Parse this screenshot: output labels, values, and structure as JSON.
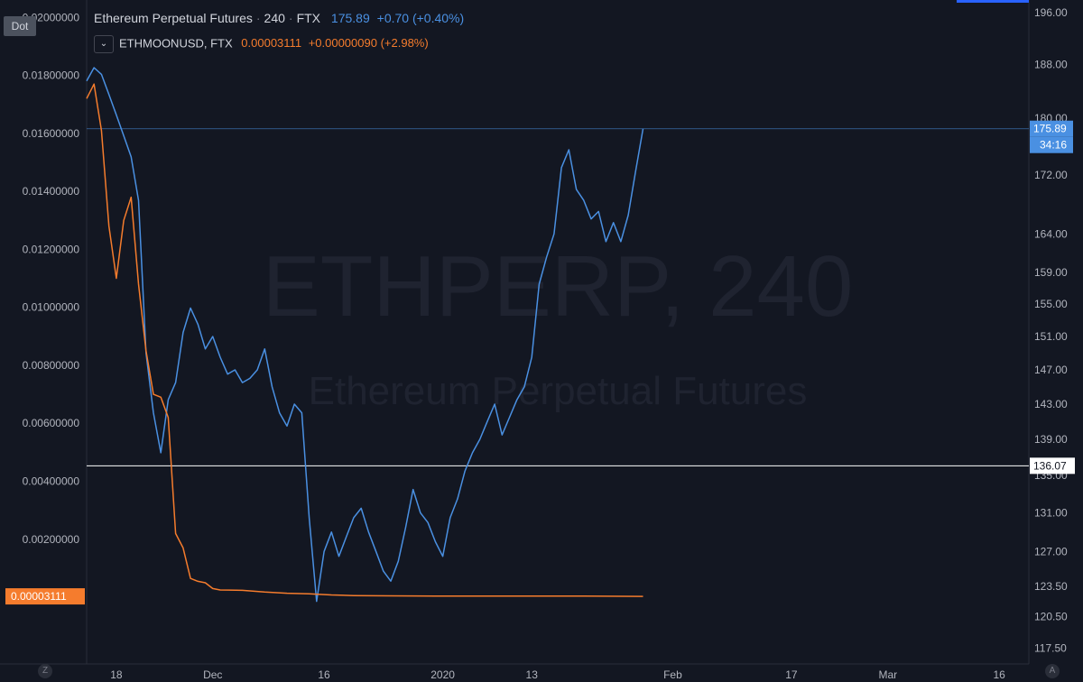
{
  "legend": {
    "main_title": "Ethereum Perpetual Futures",
    "interval": "240",
    "exchange": "FTX",
    "price": "175.89",
    "change": "+0.70 (+0.40%)",
    "overlay_symbol": "ETHMOONUSD, FTX",
    "overlay_price": "0.00003111",
    "overlay_change": "+0.00000090 (+2.98%)"
  },
  "toolbar": {
    "dot_label": "Dot",
    "zoom_icon": "Z",
    "auto_icon": "A"
  },
  "watermark": {
    "symbol": "ETHPERP, 240",
    "description": "Ethereum Perpetual Futures"
  },
  "colors": {
    "background": "#131722",
    "eth": "#4a90e2",
    "moon": "#f57c2d",
    "axis_text": "#b2b5be",
    "hline": "#ffffff",
    "price_line": "#4a90e2"
  },
  "chart_data": {
    "type": "line",
    "xlabel": "",
    "ylabel_left": "",
    "ylabel_right": "",
    "x_ticks": [
      "18",
      "Dec",
      "16",
      "2020",
      "13",
      "Feb",
      "17",
      "Mar",
      "16"
    ],
    "right_axis": {
      "scale": "log",
      "ticks": [
        "196.00",
        "188.00",
        "180.00",
        "172.00",
        "164.00",
        "159.00",
        "155.00",
        "151.00",
        "147.00",
        "143.00",
        "139.00",
        "135.00",
        "131.00",
        "127.00",
        "123.50",
        "120.50",
        "117.50"
      ],
      "ylim": [
        116,
        198
      ],
      "last_price_label": "175.89",
      "countdown_label": "34:16",
      "hline_label": "136.07"
    },
    "left_axis": {
      "ticks": [
        "0.02000000",
        "0.01800000",
        "0.01600000",
        "0.01400000",
        "0.01200000",
        "0.01000000",
        "0.00800000",
        "0.00600000",
        "0.00400000",
        "0.00200000"
      ],
      "ylim": [
        -0.0023,
        0.0206
      ],
      "last_value_label": "0.00003111"
    },
    "horizontal_line": 136.07,
    "series": [
      {
        "name": "Ethereum Perpetual Futures",
        "axis": "right",
        "x": [
          "Nov 14",
          "Nov 15",
          "Nov 16",
          "Nov 17",
          "Nov 18",
          "Nov 19",
          "Nov 20",
          "Nov 21",
          "Nov 22",
          "Nov 23",
          "Nov 24",
          "Nov 25",
          "Nov 26",
          "Nov 27",
          "Nov 28",
          "Nov 29",
          "Nov 30",
          "Dec 1",
          "Dec 2",
          "Dec 3",
          "Dec 4",
          "Dec 5",
          "Dec 6",
          "Dec 7",
          "Dec 8",
          "Dec 9",
          "Dec 10",
          "Dec 11",
          "Dec 12",
          "Dec 13",
          "Dec 14",
          "Dec 15",
          "Dec 16",
          "Dec 17",
          "Dec 18",
          "Dec 19",
          "Dec 20",
          "Dec 21",
          "Dec 22",
          "Dec 23",
          "Dec 24",
          "Dec 25",
          "Dec 26",
          "Dec 27",
          "Dec 28",
          "Dec 29",
          "Dec 30",
          "Dec 31",
          "Jan 1",
          "Jan 2",
          "Jan 3",
          "Jan 4",
          "Jan 5",
          "Jan 6",
          "Jan 7",
          "Jan 8",
          "Jan 9",
          "Jan 10",
          "Jan 11",
          "Jan 12",
          "Jan 13",
          "Jan 14",
          "Jan 15",
          "Jan 16",
          "Jan 17",
          "Jan 18",
          "Jan 19",
          "Jan 20",
          "Jan 21",
          "Jan 22",
          "Jan 23",
          "Jan 24",
          "Jan 25",
          "Jan 26",
          "Jan 27",
          "Jan 28"
        ],
        "values": [
          185.5,
          187.5,
          186.5,
          183.5,
          180.5,
          177.5,
          174.5,
          168.5,
          149.0,
          142.0,
          137.5,
          143.5,
          145.5,
          151.5,
          154.5,
          152.5,
          149.5,
          151.0,
          148.5,
          146.5,
          147.0,
          145.5,
          146.0,
          147.0,
          149.5,
          145.0,
          142.0,
          140.5,
          143.0,
          142.0,
          130.5,
          122.0,
          127.0,
          129.0,
          126.5,
          128.5,
          130.5,
          131.5,
          129.0,
          127.0,
          125.0,
          124.0,
          126.0,
          129.5,
          133.5,
          131.0,
          130.0,
          128.0,
          126.5,
          130.5,
          132.5,
          135.5,
          137.5,
          139.0,
          141.0,
          143.0,
          139.5,
          141.5,
          143.5,
          145.0,
          148.5,
          157.5,
          161.0,
          164.0,
          173.0,
          175.5,
          170.0,
          168.5,
          166.0,
          167.0,
          163.0,
          165.5,
          163.0,
          166.5,
          172.5,
          178.5
        ]
      },
      {
        "name": "ETHMOONUSD, FTX",
        "axis": "left",
        "x": [
          "Nov 14",
          "Nov 15",
          "Nov 16",
          "Nov 17",
          "Nov 18",
          "Nov 19",
          "Nov 20",
          "Nov 21",
          "Nov 22",
          "Nov 23",
          "Nov 24",
          "Nov 25",
          "Nov 26",
          "Nov 27",
          "Nov 28",
          "Nov 29",
          "Nov 30",
          "Dec 1",
          "Dec 2",
          "Dec 5",
          "Dec 8",
          "Dec 11",
          "Dec 14",
          "Dec 17",
          "Dec 20",
          "Dec 25",
          "Dec 31",
          "Jan 10",
          "Jan 20",
          "Jan 28"
        ],
        "values": [
          0.0172,
          0.0177,
          0.0161,
          0.0128,
          0.011,
          0.013,
          0.0138,
          0.0108,
          0.0085,
          0.007,
          0.0069,
          0.0062,
          0.0022,
          0.0017,
          0.00065,
          0.00055,
          0.0005,
          0.0003,
          0.00025,
          0.00024,
          0.00018,
          0.00014,
          0.00012,
          8e-05,
          6e-05,
          5e-05,
          4e-05,
          4e-05,
          4e-05,
          3.111e-05
        ]
      }
    ]
  }
}
